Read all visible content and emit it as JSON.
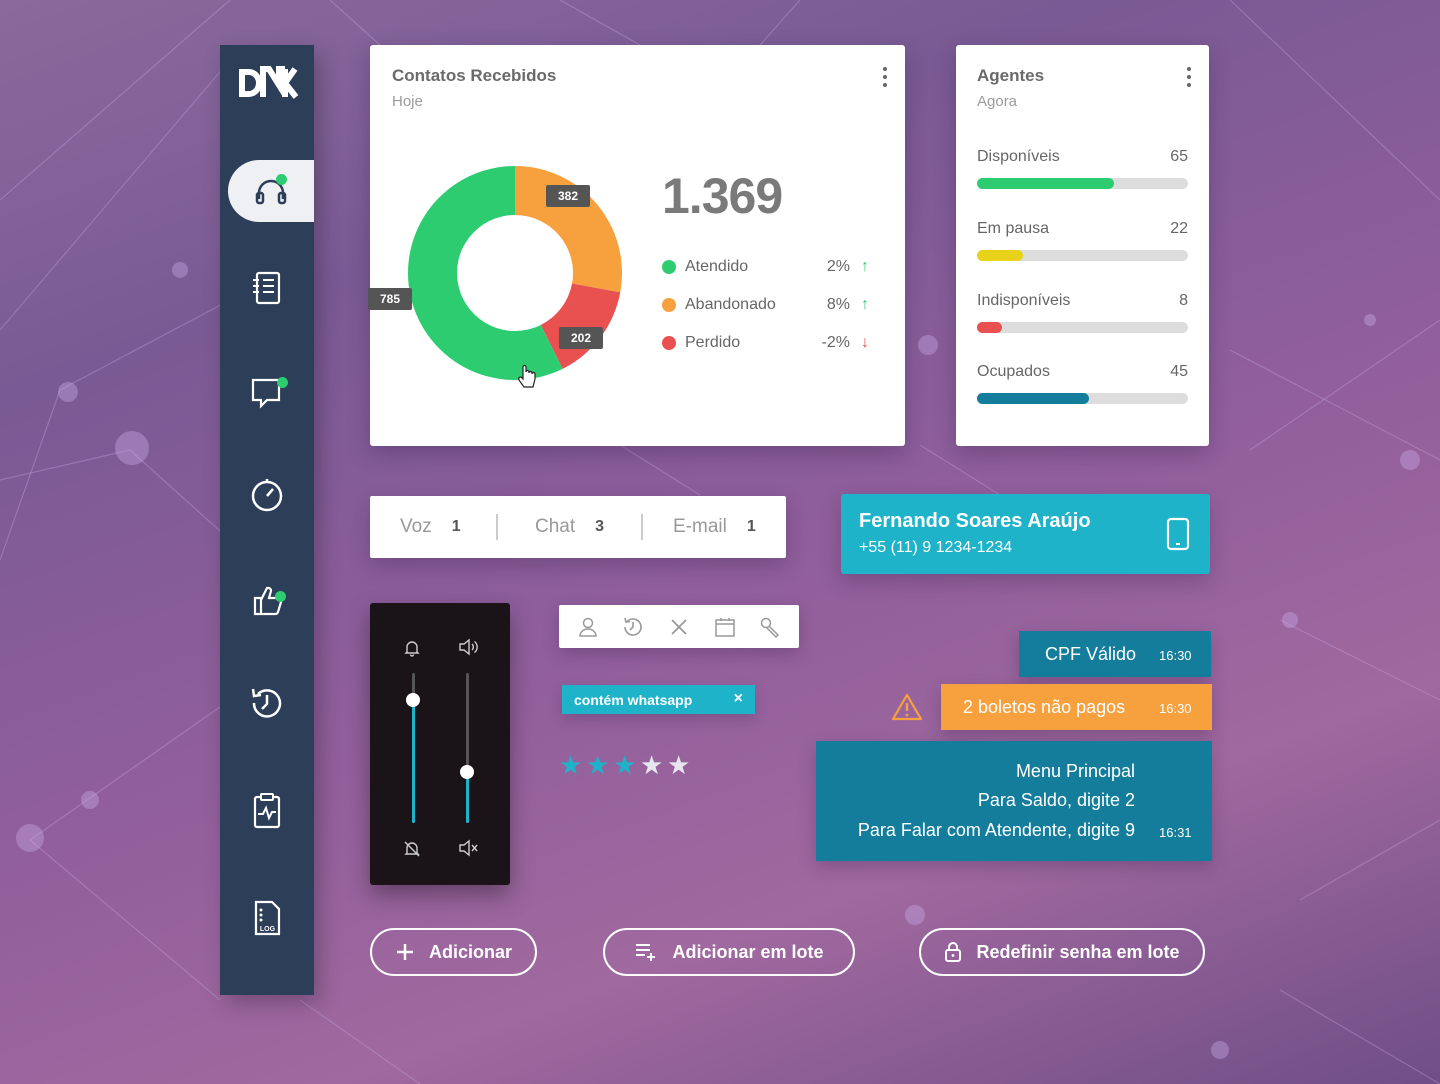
{
  "sidebar": {
    "logo": "DNK",
    "items": [
      {
        "icon": "headset-icon",
        "active": true,
        "notification": true
      },
      {
        "icon": "notebook-icon",
        "active": false,
        "notification": false
      },
      {
        "icon": "chat-icon",
        "active": false,
        "notification": true
      },
      {
        "icon": "timer-icon",
        "active": false,
        "notification": false
      },
      {
        "icon": "thumbs-up-icon",
        "active": false,
        "notification": true
      },
      {
        "icon": "history-icon",
        "active": false,
        "notification": false
      },
      {
        "icon": "clipboard-pulse-icon",
        "active": false,
        "notification": false
      },
      {
        "icon": "log-file-icon",
        "active": false,
        "notification": false,
        "label": "LOG"
      }
    ]
  },
  "contatos": {
    "title": "Contatos Recebidos",
    "subtitle": "Hoje",
    "total": "1.369",
    "legend": [
      {
        "name": "Atendido",
        "pct": "2%",
        "trend": "up",
        "color": "#2ecc71",
        "value": "785"
      },
      {
        "name": "Abandonado",
        "pct": "8%",
        "trend": "up",
        "color": "#f6a03e",
        "value": "382"
      },
      {
        "name": "Perdido",
        "pct": "-2%",
        "trend": "down",
        "color": "#e8514f",
        "value": "202"
      }
    ]
  },
  "chart_data": {
    "type": "pie",
    "categories": [
      "Atendido",
      "Abandonado",
      "Perdido"
    ],
    "values": [
      785,
      382,
      202
    ],
    "colors": [
      "#2ecc71",
      "#f6a03e",
      "#e8514f"
    ],
    "title": "Contatos Recebidos"
  },
  "agentes": {
    "title": "Agentes",
    "subtitle": "Agora",
    "rows": [
      {
        "label": "Disponíveis",
        "value": "65",
        "fraction": 0.65,
        "color": "#2ecc71"
      },
      {
        "label": "Em pausa",
        "value": "22",
        "fraction": 0.22,
        "color": "#e8d21a"
      },
      {
        "label": "Indisponíveis",
        "value": "8",
        "fraction": 0.12,
        "color": "#e8514f"
      },
      {
        "label": "Ocupados",
        "value": "45",
        "fraction": 0.53,
        "color": "#147d9b"
      }
    ]
  },
  "channels": [
    {
      "label": "Voz",
      "count": "1"
    },
    {
      "label": "Chat",
      "count": "3"
    },
    {
      "label": "E-mail",
      "count": "1"
    }
  ],
  "contact": {
    "name": "Fernando Soares Araújo",
    "phone": "+55 (11) 9 1234-1234"
  },
  "volume": {
    "notification_level": 0.82,
    "speaker_level": 0.34
  },
  "toolbar_icons": [
    "user-icon",
    "history-icon",
    "close-icon",
    "calendar-icon",
    "wrench-icon"
  ],
  "tag": {
    "label": "contém whatsapp",
    "close": "×"
  },
  "rating": {
    "value": 3,
    "max": 5
  },
  "messages": {
    "cpf": {
      "text": "CPF Válido",
      "time": "16:30"
    },
    "boletos": {
      "text": "2 boletos não pagos",
      "time": "16:30"
    },
    "menu": {
      "lines": [
        "Menu Principal",
        "Para Saldo, digite 2",
        "Para Falar com Atendente, digite 9"
      ],
      "time": "16:31"
    }
  },
  "buttons": {
    "add": "Adicionar",
    "add_batch": "Adicionar em lote",
    "reset_batch": "Redefinir senha em lote"
  }
}
